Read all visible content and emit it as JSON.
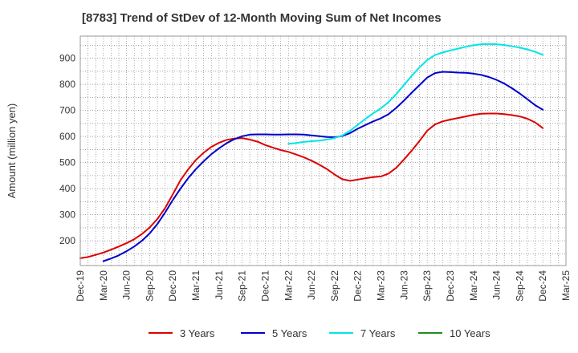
{
  "chart_data": {
    "type": "line",
    "title": "[8783]  Trend of StDev of 12-Month Moving Sum of Net Incomes",
    "ylabel": "Amount (million yen)",
    "xlabel": "",
    "ylim": [
      105,
      985
    ],
    "yticks": [
      200,
      300,
      400,
      500,
      600,
      700,
      800,
      900
    ],
    "xlim": [
      "Dec-19",
      "Mar-25"
    ],
    "xticks": [
      "Dec-19",
      "Mar-20",
      "Jun-20",
      "Sep-20",
      "Dec-20",
      "Mar-21",
      "Jun-21",
      "Sep-21",
      "Dec-21",
      "Mar-22",
      "Jun-22",
      "Sep-22",
      "Dec-22",
      "Mar-23",
      "Jun-23",
      "Sep-23",
      "Dec-23",
      "Mar-24",
      "Jun-24",
      "Sep-24",
      "Dec-24",
      "Mar-25"
    ],
    "grid": true,
    "legend_position": "bottom",
    "series": [
      {
        "name": "3 Years",
        "color": "#dd0000",
        "points": [
          [
            "2019-12",
            133
          ],
          [
            "2020-01",
            138
          ],
          [
            "2020-02",
            146
          ],
          [
            "2020-03",
            155
          ],
          [
            "2020-04",
            166
          ],
          [
            "2020-05",
            178
          ],
          [
            "2020-06",
            191
          ],
          [
            "2020-07",
            206
          ],
          [
            "2020-08",
            226
          ],
          [
            "2020-09",
            251
          ],
          [
            "2020-10",
            283
          ],
          [
            "2020-11",
            325
          ],
          [
            "2020-12",
            378
          ],
          [
            "2021-01",
            432
          ],
          [
            "2021-02",
            474
          ],
          [
            "2021-03",
            510
          ],
          [
            "2021-04",
            538
          ],
          [
            "2021-05",
            560
          ],
          [
            "2021-06",
            576
          ],
          [
            "2021-07",
            587
          ],
          [
            "2021-08",
            592
          ],
          [
            "2021-09",
            594
          ],
          [
            "2021-10",
            588
          ],
          [
            "2021-11",
            580
          ],
          [
            "2021-12",
            567
          ],
          [
            "2022-01",
            557
          ],
          [
            "2022-02",
            548
          ],
          [
            "2022-03",
            541
          ],
          [
            "2022-04",
            531
          ],
          [
            "2022-05",
            520
          ],
          [
            "2022-06",
            507
          ],
          [
            "2022-07",
            492
          ],
          [
            "2022-08",
            475
          ],
          [
            "2022-09",
            454
          ],
          [
            "2022-10",
            436
          ],
          [
            "2022-11",
            430
          ],
          [
            "2022-12",
            435
          ],
          [
            "2023-01",
            440
          ],
          [
            "2023-02",
            444
          ],
          [
            "2023-03",
            447
          ],
          [
            "2023-04",
            458
          ],
          [
            "2023-05",
            480
          ],
          [
            "2023-06",
            512
          ],
          [
            "2023-07",
            546
          ],
          [
            "2023-08",
            583
          ],
          [
            "2023-09",
            622
          ],
          [
            "2023-10",
            646
          ],
          [
            "2023-11",
            658
          ],
          [
            "2023-12",
            665
          ],
          [
            "2024-01",
            671
          ],
          [
            "2024-02",
            677
          ],
          [
            "2024-03",
            683
          ],
          [
            "2024-04",
            687
          ],
          [
            "2024-05",
            688
          ],
          [
            "2024-06",
            688
          ],
          [
            "2024-07",
            686
          ],
          [
            "2024-08",
            682
          ],
          [
            "2024-09",
            677
          ],
          [
            "2024-10",
            668
          ],
          [
            "2024-11",
            654
          ],
          [
            "2024-12",
            632
          ]
        ]
      },
      {
        "name": "5 Years",
        "color": "#0000cc",
        "points": [
          [
            "2020-03",
            122
          ],
          [
            "2020-04",
            132
          ],
          [
            "2020-05",
            144
          ],
          [
            "2020-06",
            160
          ],
          [
            "2020-07",
            178
          ],
          [
            "2020-08",
            200
          ],
          [
            "2020-09",
            228
          ],
          [
            "2020-10",
            264
          ],
          [
            "2020-11",
            308
          ],
          [
            "2020-12",
            356
          ],
          [
            "2021-01",
            400
          ],
          [
            "2021-02",
            440
          ],
          [
            "2021-03",
            475
          ],
          [
            "2021-04",
            505
          ],
          [
            "2021-05",
            532
          ],
          [
            "2021-06",
            555
          ],
          [
            "2021-07",
            575
          ],
          [
            "2021-08",
            590
          ],
          [
            "2021-09",
            601
          ],
          [
            "2021-10",
            607
          ],
          [
            "2021-11",
            608
          ],
          [
            "2021-12",
            608
          ],
          [
            "2022-01",
            607
          ],
          [
            "2022-02",
            607
          ],
          [
            "2022-03",
            608
          ],
          [
            "2022-04",
            608
          ],
          [
            "2022-05",
            607
          ],
          [
            "2022-06",
            604
          ],
          [
            "2022-07",
            601
          ],
          [
            "2022-08",
            598
          ],
          [
            "2022-09",
            597
          ],
          [
            "2022-10",
            602
          ],
          [
            "2022-11",
            613
          ],
          [
            "2022-12",
            630
          ],
          [
            "2023-01",
            644
          ],
          [
            "2023-02",
            658
          ],
          [
            "2023-03",
            670
          ],
          [
            "2023-04",
            686
          ],
          [
            "2023-05",
            710
          ],
          [
            "2023-06",
            738
          ],
          [
            "2023-07",
            768
          ],
          [
            "2023-08",
            797
          ],
          [
            "2023-09",
            826
          ],
          [
            "2023-10",
            843
          ],
          [
            "2023-11",
            848
          ],
          [
            "2023-12",
            847
          ],
          [
            "2024-01",
            845
          ],
          [
            "2024-02",
            844
          ],
          [
            "2024-03",
            841
          ],
          [
            "2024-04",
            836
          ],
          [
            "2024-05",
            828
          ],
          [
            "2024-06",
            817
          ],
          [
            "2024-07",
            803
          ],
          [
            "2024-08",
            785
          ],
          [
            "2024-09",
            765
          ],
          [
            "2024-10",
            743
          ],
          [
            "2024-11",
            720
          ],
          [
            "2024-12",
            703
          ]
        ]
      },
      {
        "name": "7 Years",
        "color": "#00e5e5",
        "points": [
          [
            "2022-03",
            572
          ],
          [
            "2022-04",
            575
          ],
          [
            "2022-05",
            579
          ],
          [
            "2022-06",
            582
          ],
          [
            "2022-07",
            584
          ],
          [
            "2022-08",
            588
          ],
          [
            "2022-09",
            594
          ],
          [
            "2022-10",
            604
          ],
          [
            "2022-11",
            622
          ],
          [
            "2022-12",
            645
          ],
          [
            "2023-01",
            668
          ],
          [
            "2023-02",
            689
          ],
          [
            "2023-03",
            708
          ],
          [
            "2023-04",
            732
          ],
          [
            "2023-05",
            763
          ],
          [
            "2023-06",
            798
          ],
          [
            "2023-07",
            833
          ],
          [
            "2023-08",
            865
          ],
          [
            "2023-09",
            893
          ],
          [
            "2023-10",
            912
          ],
          [
            "2023-11",
            922
          ],
          [
            "2023-12",
            930
          ],
          [
            "2024-01",
            937
          ],
          [
            "2024-02",
            944
          ],
          [
            "2024-03",
            950
          ],
          [
            "2024-04",
            954
          ],
          [
            "2024-05",
            955
          ],
          [
            "2024-06",
            954
          ],
          [
            "2024-07",
            951
          ],
          [
            "2024-08",
            946
          ],
          [
            "2024-09",
            941
          ],
          [
            "2024-10",
            934
          ],
          [
            "2024-11",
            925
          ],
          [
            "2024-12",
            913
          ]
        ]
      },
      {
        "name": "10 Years",
        "color": "#228b22",
        "points": []
      }
    ]
  }
}
